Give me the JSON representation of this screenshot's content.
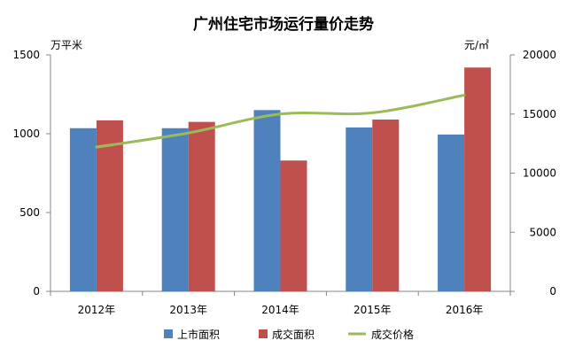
{
  "chart_data": {
    "type": "bar",
    "title": "广州住宅市场运行量价走势",
    "categories": [
      "2012年",
      "2013年",
      "2014年",
      "2015年",
      "2016年"
    ],
    "y_left": {
      "label": "万平米",
      "range": [
        0,
        1500
      ],
      "ticks": [
        0,
        500,
        1000,
        1500
      ]
    },
    "y_right": {
      "label": "元/㎡",
      "range": [
        0,
        20000
      ],
      "ticks": [
        0,
        5000,
        10000,
        15000,
        20000
      ]
    },
    "grid": false,
    "legend_position": "bottom",
    "series": [
      {
        "name": "上市面积",
        "type": "bar",
        "axis": "left",
        "color": "#4F81BD",
        "values": [
          1035,
          1035,
          1150,
          1040,
          995
        ]
      },
      {
        "name": "成交面积",
        "type": "bar",
        "axis": "left",
        "color": "#C0504D",
        "values": [
          1085,
          1075,
          830,
          1090,
          1420
        ]
      },
      {
        "name": "成交价格",
        "type": "line",
        "axis": "right",
        "color": "#9BBB59",
        "values": [
          12200,
          13400,
          15000,
          15100,
          16600
        ]
      }
    ]
  }
}
